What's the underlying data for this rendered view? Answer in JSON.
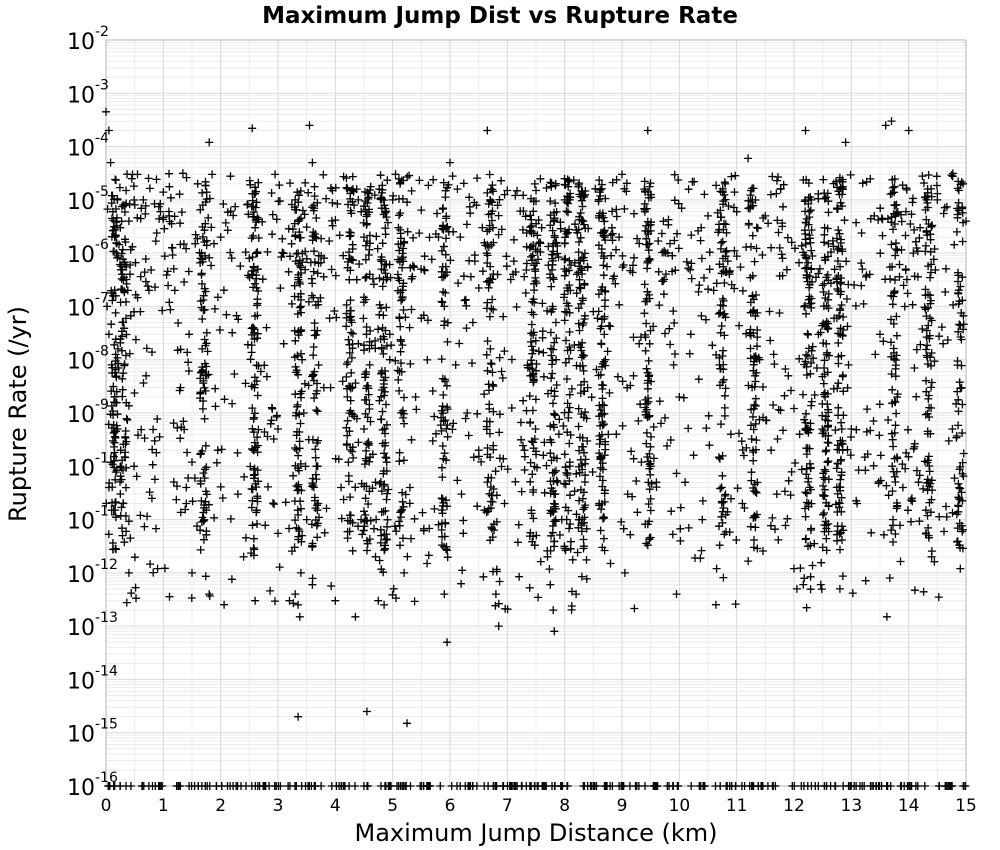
{
  "chart_data": {
    "type": "scatter",
    "title": "Maximum Jump Dist vs Rupture Rate",
    "xlabel": "Maximum Jump Distance (km)",
    "ylabel": "Rupture Rate (/yr)",
    "xlim": [
      0,
      15
    ],
    "ylim": [
      1e-16,
      0.01
    ],
    "yscale": "log",
    "grid": true,
    "marker": "plus",
    "marker_color": "#000000",
    "x_ticks": [
      "0",
      "1",
      "2",
      "3",
      "4",
      "5",
      "6",
      "7",
      "8",
      "9",
      "10",
      "11",
      "12",
      "13",
      "14",
      "15"
    ],
    "y_ticks": [
      {
        "base": "10",
        "exp": "-16"
      },
      {
        "base": "10",
        "exp": "-15"
      },
      {
        "base": "10",
        "exp": "-14"
      },
      {
        "base": "10",
        "exp": "-13"
      },
      {
        "base": "10",
        "exp": "-12"
      },
      {
        "base": "10",
        "exp": "-11"
      },
      {
        "base": "10",
        "exp": "-10"
      },
      {
        "base": "10",
        "exp": "-9"
      },
      {
        "base": "10",
        "exp": "-8"
      },
      {
        "base": "10",
        "exp": "-7"
      },
      {
        "base": "10",
        "exp": "-6"
      },
      {
        "base": "10",
        "exp": "-5"
      },
      {
        "base": "10",
        "exp": "-4"
      },
      {
        "base": "10",
        "exp": "-3"
      },
      {
        "base": "10",
        "exp": "-2"
      }
    ],
    "points": [
      [
        0.0,
        0.00045
      ],
      [
        0.05,
        0.0002
      ],
      [
        0.08,
        5e-05
      ],
      [
        0.1,
        1.2e-05
      ],
      [
        0.12,
        6e-06
      ],
      [
        0.15,
        2e-06
      ],
      [
        0.2,
        1e-05
      ],
      [
        0.25,
        3e-06
      ],
      [
        0.3,
        8e-06
      ],
      [
        0.35,
        1.5e-05
      ],
      [
        0.4,
        4e-06
      ],
      [
        0.45,
        2.5e-05
      ],
      [
        0.02,
        1e-07
      ],
      [
        0.05,
        3e-08
      ],
      [
        0.1,
        8e-09
      ],
      [
        0.15,
        2e-09
      ],
      [
        0.2,
        5e-10
      ],
      [
        0.25,
        1e-10
      ],
      [
        0.3,
        2e-11
      ],
      [
        0.35,
        6e-12
      ],
      [
        0.4,
        1e-12
      ],
      [
        0.05,
        4e-11
      ],
      [
        0.1,
        1.5e-11
      ],
      [
        0.12,
        3e-10
      ],
      [
        0.22,
        7e-09
      ],
      [
        0.3,
        5e-08
      ],
      [
        0.38,
        2e-07
      ],
      [
        0.42,
        6e-07
      ],
      [
        0.18,
        1e-06
      ],
      [
        0.28,
        4e-07
      ],
      [
        0.6,
        1.2e-11
      ],
      [
        0.8,
        2.5e-11
      ],
      [
        0.9,
        1.2e-12
      ],
      [
        0.7,
        5e-09
      ],
      [
        0.85,
        3e-10
      ],
      [
        0.6,
        8e-08
      ],
      [
        0.75,
        2e-07
      ],
      [
        0.55,
        3e-05
      ],
      [
        0.65,
        1e-05
      ],
      [
        0.95,
        6e-06
      ],
      [
        1.0,
        1.4e-05
      ],
      [
        1.1,
        5e-06
      ],
      [
        1.2,
        2e-07
      ],
      [
        1.25,
        1.5e-08
      ],
      [
        1.3,
        3e-09
      ],
      [
        1.35,
        7e-10
      ],
      [
        1.4,
        2e-11
      ],
      [
        1.45,
        3e-08
      ],
      [
        1.5,
        1.2e-10
      ],
      [
        1.55,
        6e-11
      ],
      [
        1.6,
        2e-05
      ],
      [
        1.65,
        8e-07
      ],
      [
        1.7,
        4e-09
      ],
      [
        1.75,
        1.5e-11
      ],
      [
        1.8,
        0.00012
      ],
      [
        1.85,
        3e-05
      ],
      [
        1.9,
        9e-08
      ],
      [
        1.95,
        2e-10
      ],
      [
        1.8,
        4e-13
      ],
      [
        1.5,
        1e-12
      ],
      [
        2.0,
        2e-06
      ],
      [
        2.1,
        7e-08
      ],
      [
        2.2,
        1.5e-09
      ],
      [
        2.3,
        3e-11
      ],
      [
        2.4,
        2e-12
      ],
      [
        2.5,
        8e-07
      ],
      [
        2.55,
        0.00022
      ],
      [
        2.6,
        3e-06
      ],
      [
        2.62,
        1e-06
      ],
      [
        2.65,
        5e-07
      ],
      [
        2.58,
        2e-10
      ],
      [
        2.6,
        7e-11
      ],
      [
        2.63,
        1.5e-11
      ],
      [
        2.6,
        3e-13
      ],
      [
        2.7,
        6e-09
      ],
      [
        2.8,
        4e-08
      ],
      [
        2.9,
        1.2e-09
      ],
      [
        2.95,
        3e-05
      ],
      [
        3.0,
        5e-10
      ],
      [
        3.1,
        2e-08
      ],
      [
        3.2,
        3e-13
      ],
      [
        3.3,
        4e-13
      ],
      [
        3.35,
        2.5e-13
      ],
      [
        3.38,
        1.5e-13
      ],
      [
        3.4,
        1e-12
      ],
      [
        3.42,
        5e-12
      ],
      [
        3.35,
        2e-15
      ],
      [
        3.3,
        1e-05
      ],
      [
        3.35,
        1e-06
      ],
      [
        3.4,
        1e-07
      ],
      [
        3.42,
        1e-08
      ],
      [
        3.45,
        1e-09
      ],
      [
        3.48,
        1e-10
      ],
      [
        3.5,
        1e-11
      ],
      [
        3.55,
        0.00025
      ],
      [
        3.6,
        5e-05
      ],
      [
        3.6,
        6e-13
      ],
      [
        3.7,
        2e-11
      ],
      [
        3.8,
        3e-09
      ],
      [
        3.9,
        6e-08
      ],
      [
        3.95,
        1.5e-05
      ],
      [
        4.0,
        3e-13
      ],
      [
        4.1,
        4e-11
      ],
      [
        4.2,
        2.5e-10
      ],
      [
        4.3,
        3e-09
      ],
      [
        4.35,
        1.5e-13
      ],
      [
        4.4,
        2e-08
      ],
      [
        4.45,
        1e-11
      ],
      [
        4.5,
        5e-10
      ],
      [
        4.55,
        2.5e-15
      ],
      [
        4.6,
        4e-07
      ],
      [
        4.7,
        2e-12
      ],
      [
        4.75,
        3e-13
      ],
      [
        4.8,
        5e-12
      ],
      [
        4.85,
        2.5e-13
      ],
      [
        4.9,
        6e-10
      ],
      [
        4.95,
        3e-08
      ],
      [
        4.4,
        1e-05
      ],
      [
        4.5,
        2e-06
      ],
      [
        4.6,
        8e-09
      ],
      [
        4.7,
        5e-11
      ],
      [
        5.0,
        1e-05
      ],
      [
        5.1,
        3e-06
      ],
      [
        5.2,
        1e-12
      ],
      [
        5.25,
        1.5e-15
      ],
      [
        5.3,
        4e-11
      ],
      [
        5.4,
        2e-09
      ],
      [
        5.5,
        6e-08
      ],
      [
        5.6,
        1.5e-12
      ],
      [
        5.7,
        3e-10
      ],
      [
        5.8,
        8e-12
      ],
      [
        5.9,
        4e-13
      ],
      [
        5.95,
        5e-14
      ],
      [
        5.8,
        2e-06
      ],
      [
        5.9,
        1e-07
      ],
      [
        6.0,
        5e-05
      ],
      [
        6.1,
        8e-09
      ],
      [
        6.2,
        3e-11
      ],
      [
        6.3,
        1e-09
      ],
      [
        6.4,
        5e-08
      ],
      [
        6.5,
        2e-10
      ],
      [
        6.6,
        1.5e-11
      ],
      [
        6.65,
        0.0002
      ],
      [
        6.7,
        1e-05
      ],
      [
        6.75,
        3e-06
      ],
      [
        6.8,
        4e-13
      ],
      [
        6.85,
        1e-13
      ],
      [
        6.9,
        6e-09
      ],
      [
        6.95,
        2e-11
      ],
      [
        7.0,
        1.5e-05
      ],
      [
        7.1,
        4e-07
      ],
      [
        7.2,
        8e-12
      ],
      [
        7.3,
        2e-10
      ],
      [
        7.4,
        5e-09
      ],
      [
        7.5,
        1.5e-05
      ],
      [
        7.6,
        3e-06
      ],
      [
        7.7,
        2e-12
      ],
      [
        7.75,
        6e-13
      ],
      [
        7.8,
        2e-13
      ],
      [
        7.82,
        8e-14
      ],
      [
        7.85,
        1e-08
      ],
      [
        7.9,
        4e-10
      ],
      [
        7.95,
        1e-11
      ],
      [
        8.0,
        1e-05
      ],
      [
        8.1,
        2e-07
      ],
      [
        8.2,
        4e-13
      ],
      [
        8.3,
        6e-12
      ],
      [
        8.4,
        3e-09
      ],
      [
        8.5,
        8e-08
      ],
      [
        8.6,
        2e-11
      ],
      [
        8.65,
        5e-06
      ],
      [
        8.7,
        1e-07
      ],
      [
        8.8,
        1.5e-12
      ],
      [
        8.9,
        4e-10
      ],
      [
        8.95,
        2e-06
      ],
      [
        9.0,
        3e-05
      ],
      [
        9.05,
        1e-12
      ],
      [
        9.1,
        3e-11
      ],
      [
        9.2,
        5e-09
      ],
      [
        9.3,
        2e-08
      ],
      [
        9.4,
        6e-06
      ],
      [
        9.45,
        0.0002
      ],
      [
        9.5,
        1e-10
      ],
      [
        9.6,
        5e-11
      ],
      [
        9.7,
        3e-07
      ],
      [
        9.8,
        1e-06
      ],
      [
        9.9,
        8e-09
      ],
      [
        9.95,
        4e-13
      ],
      [
        10.0,
        2e-09
      ],
      [
        10.1,
        5e-11
      ],
      [
        10.2,
        3e-08
      ],
      [
        10.4,
        1e-11
      ],
      [
        10.5,
        5e-06
      ],
      [
        10.6,
        2e-07
      ],
      [
        10.65,
        1.2e-12
      ],
      [
        10.7,
        8e-09
      ],
      [
        10.8,
        2e-05
      ],
      [
        10.9,
        4e-10
      ],
      [
        11.0,
        6e-06
      ],
      [
        11.1,
        2e-11
      ],
      [
        11.2,
        6e-05
      ],
      [
        11.25,
        1.5e-05
      ],
      [
        11.3,
        3e-12
      ],
      [
        11.4,
        1e-08
      ],
      [
        11.5,
        5e-06
      ],
      [
        11.6,
        2e-10
      ],
      [
        11.7,
        3e-11
      ],
      [
        11.8,
        8e-07
      ],
      [
        11.9,
        5e-09
      ],
      [
        12.0,
        1.2e-12
      ],
      [
        12.05,
        5e-13
      ],
      [
        12.1,
        4e-10
      ],
      [
        12.2,
        0.0002
      ],
      [
        12.3,
        1e-05
      ],
      [
        12.4,
        7e-09
      ],
      [
        12.5,
        3e-12
      ],
      [
        12.55,
        8e-11
      ],
      [
        12.6,
        1.5e-06
      ],
      [
        12.7,
        6e-08
      ],
      [
        12.75,
        4e-12
      ],
      [
        12.8,
        5e-13
      ],
      [
        12.85,
        2e-10
      ],
      [
        12.9,
        0.00012
      ],
      [
        12.95,
        8e-09
      ],
      [
        13.0,
        5e-10
      ],
      [
        13.1,
        2e-11
      ],
      [
        13.4,
        5e-06
      ],
      [
        13.5,
        3e-08
      ],
      [
        13.6,
        0.00025
      ],
      [
        13.62,
        1.5e-13
      ],
      [
        13.7,
        0.0003
      ],
      [
        13.75,
        8e-06
      ],
      [
        13.8,
        2e-09
      ],
      [
        13.9,
        4e-11
      ],
      [
        13.95,
        5e-07
      ],
      [
        14.0,
        0.0002
      ],
      [
        14.1,
        7e-09
      ],
      [
        14.2,
        3e-06
      ],
      [
        14.3,
        1.5e-11
      ],
      [
        14.35,
        5e-12
      ],
      [
        14.4,
        2e-12
      ],
      [
        14.5,
        1e-05
      ],
      [
        14.6,
        2e-08
      ],
      [
        14.7,
        3e-10
      ],
      [
        14.8,
        6e-11
      ],
      [
        14.9,
        1.2e-12
      ],
      [
        14.95,
        2e-05
      ],
      [
        15.0,
        4e-06
      ]
    ],
    "column_x": [
      0.15,
      0.3,
      1.7,
      2.6,
      3.35,
      3.65,
      4.25,
      4.55,
      4.85,
      5.15,
      5.9,
      6.7,
      7.45,
      7.8,
      8.05,
      8.3,
      8.65,
      9.45,
      10.75,
      11.3,
      12.25,
      12.55,
      12.8,
      13.75,
      14.35,
      14.9
    ],
    "floor_value": 1e-16
  }
}
